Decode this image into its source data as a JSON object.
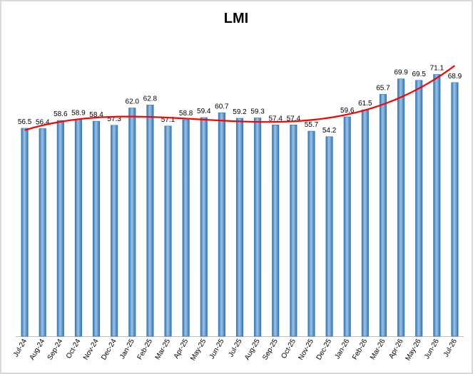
{
  "chart_data": {
    "type": "bar",
    "title": "LMI",
    "categories": [
      "Jul-24",
      "Aug-24",
      "Sep-24",
      "Oct-24",
      "Nov-24",
      "Dec-24",
      "Jan-25",
      "Feb-25",
      "Mar-25",
      "Apr-25",
      "May-25",
      "Jun-25",
      "Jul-25",
      "Aug-25",
      "Sep-25",
      "Oct-25",
      "Nov-25",
      "Dec-25",
      "Jan-26",
      "Feb-26",
      "Mar-26",
      "Apr-26",
      "May-26",
      "Jun-26",
      "Jul-26"
    ],
    "values": [
      56.5,
      56.4,
      58.6,
      58.9,
      58.4,
      57.3,
      62.0,
      62.8,
      57.1,
      58.8,
      59.4,
      60.7,
      59.2,
      59.3,
      57.4,
      57.4,
      55.7,
      54.2,
      59.6,
      61.5,
      65.7,
      69.9,
      69.5,
      71.1,
      68.9
    ],
    "value_labels": [
      "56.5",
      "56.4",
      "58.6",
      "58.9",
      "58.4",
      "57.3",
      "62.0",
      "62.8",
      "57.1",
      "58.8",
      "59.4",
      "60.7",
      "59.2",
      "59.3",
      "57.4",
      "57.4",
      "55.7",
      "54.2",
      "59.6",
      "61.5",
      "65.7",
      "69.9",
      "69.5",
      "71.1",
      "68.9"
    ],
    "trendline": {
      "type": "polynomial",
      "color": "#ff0000"
    },
    "bar_color": "#2e75b6",
    "bar_highlight_color": "#9dc3e6",
    "frame_color": "#d9d9d9",
    "axis_color": "#bfbfbf",
    "xlabel": "",
    "ylabel": "",
    "ylim": [
      0,
      77
    ],
    "grid": false,
    "legend": "none"
  }
}
